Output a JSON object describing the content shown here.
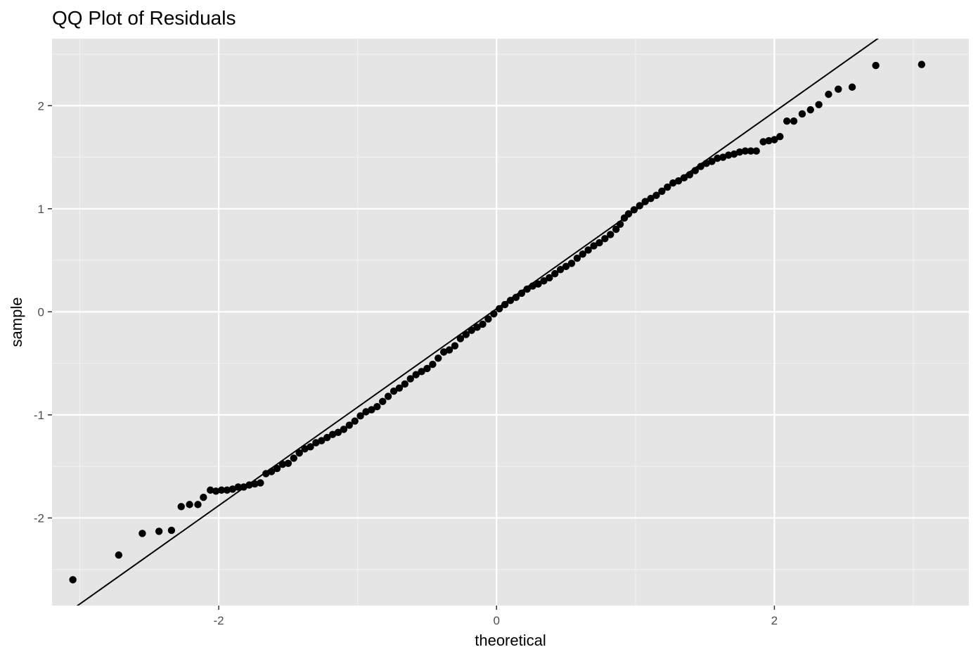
{
  "chart_data": {
    "type": "scatter",
    "title": "QQ Plot of Residuals",
    "xlabel": "theoretical",
    "ylabel": "sample",
    "xlim": [
      -3.2,
      3.4
    ],
    "ylim": [
      -2.85,
      2.65
    ],
    "x_ticks": [
      -2,
      0,
      2
    ],
    "x_tick_labels": [
      "-2",
      "0",
      "2"
    ],
    "y_ticks": [
      -2,
      -1,
      0,
      1,
      2
    ],
    "y_tick_labels": [
      "-2",
      "-1",
      "0",
      "1",
      "2"
    ],
    "grid": true,
    "reference_line": {
      "intercept": 0.03,
      "slope": 0.955
    },
    "series": [
      {
        "points": [
          [
            -3.05,
            -2.6
          ],
          [
            -2.72,
            -2.36
          ],
          [
            -2.55,
            -2.15
          ],
          [
            -2.43,
            -2.13
          ],
          [
            -2.34,
            -2.12
          ],
          [
            -2.27,
            -1.89
          ],
          [
            -2.21,
            -1.87
          ],
          [
            -2.15,
            -1.87
          ],
          [
            -2.11,
            -1.8
          ],
          [
            -2.06,
            -1.73
          ],
          [
            -2.02,
            -1.74
          ],
          [
            -1.98,
            -1.73
          ],
          [
            -1.94,
            -1.73
          ],
          [
            -1.9,
            -1.72
          ],
          [
            -1.86,
            -1.7
          ],
          [
            -1.82,
            -1.7
          ],
          [
            -1.78,
            -1.68
          ],
          [
            -1.74,
            -1.67
          ],
          [
            -1.7,
            -1.66
          ],
          [
            -1.66,
            -1.57
          ],
          [
            -1.62,
            -1.55
          ],
          [
            -1.58,
            -1.52
          ],
          [
            -1.54,
            -1.48
          ],
          [
            -1.5,
            -1.47
          ],
          [
            -1.46,
            -1.42
          ],
          [
            -1.42,
            -1.37
          ],
          [
            -1.38,
            -1.33
          ],
          [
            -1.34,
            -1.31
          ],
          [
            -1.3,
            -1.27
          ],
          [
            -1.26,
            -1.25
          ],
          [
            -1.22,
            -1.22
          ],
          [
            -1.18,
            -1.19
          ],
          [
            -1.14,
            -1.17
          ],
          [
            -1.1,
            -1.14
          ],
          [
            -1.06,
            -1.1
          ],
          [
            -1.02,
            -1.06
          ],
          [
            -0.98,
            -1.01
          ],
          [
            -0.94,
            -0.97
          ],
          [
            -0.9,
            -0.95
          ],
          [
            -0.86,
            -0.92
          ],
          [
            -0.82,
            -0.87
          ],
          [
            -0.78,
            -0.82
          ],
          [
            -0.74,
            -0.77
          ],
          [
            -0.7,
            -0.74
          ],
          [
            -0.66,
            -0.7
          ],
          [
            -0.62,
            -0.65
          ],
          [
            -0.58,
            -0.61
          ],
          [
            -0.54,
            -0.58
          ],
          [
            -0.5,
            -0.55
          ],
          [
            -0.46,
            -0.51
          ],
          [
            -0.42,
            -0.45
          ],
          [
            -0.38,
            -0.39
          ],
          [
            -0.34,
            -0.37
          ],
          [
            -0.3,
            -0.33
          ],
          [
            -0.26,
            -0.26
          ],
          [
            -0.22,
            -0.22
          ],
          [
            -0.18,
            -0.18
          ],
          [
            -0.14,
            -0.15
          ],
          [
            -0.1,
            -0.12
          ],
          [
            -0.06,
            -0.07
          ],
          [
            -0.02,
            -0.02
          ],
          [
            0.02,
            0.03
          ],
          [
            0.06,
            0.07
          ],
          [
            0.1,
            0.11
          ],
          [
            0.14,
            0.14
          ],
          [
            0.18,
            0.18
          ],
          [
            0.22,
            0.22
          ],
          [
            0.26,
            0.25
          ],
          [
            0.3,
            0.27
          ],
          [
            0.34,
            0.3
          ],
          [
            0.38,
            0.33
          ],
          [
            0.42,
            0.37
          ],
          [
            0.46,
            0.41
          ],
          [
            0.5,
            0.44
          ],
          [
            0.54,
            0.47
          ],
          [
            0.58,
            0.52
          ],
          [
            0.62,
            0.56
          ],
          [
            0.66,
            0.6
          ],
          [
            0.7,
            0.64
          ],
          [
            0.74,
            0.67
          ],
          [
            0.78,
            0.71
          ],
          [
            0.82,
            0.75
          ],
          [
            0.86,
            0.8
          ],
          [
            0.89,
            0.85
          ],
          [
            0.92,
            0.91
          ],
          [
            0.95,
            0.95
          ],
          [
            0.99,
            0.99
          ],
          [
            1.03,
            1.03
          ],
          [
            1.07,
            1.07
          ],
          [
            1.11,
            1.1
          ],
          [
            1.15,
            1.13
          ],
          [
            1.19,
            1.17
          ],
          [
            1.23,
            1.21
          ],
          [
            1.27,
            1.25
          ],
          [
            1.31,
            1.27
          ],
          [
            1.35,
            1.3
          ],
          [
            1.39,
            1.33
          ],
          [
            1.43,
            1.37
          ],
          [
            1.47,
            1.41
          ],
          [
            1.51,
            1.44
          ],
          [
            1.55,
            1.46
          ],
          [
            1.59,
            1.49
          ],
          [
            1.63,
            1.5
          ],
          [
            1.67,
            1.52
          ],
          [
            1.71,
            1.53
          ],
          [
            1.75,
            1.55
          ],
          [
            1.79,
            1.56
          ],
          [
            1.83,
            1.56
          ],
          [
            1.87,
            1.56
          ],
          [
            1.92,
            1.65
          ],
          [
            1.96,
            1.66
          ],
          [
            2.0,
            1.67
          ],
          [
            2.04,
            1.7
          ],
          [
            2.09,
            1.85
          ],
          [
            2.14,
            1.85
          ],
          [
            2.2,
            1.92
          ],
          [
            2.26,
            1.96
          ],
          [
            2.32,
            2.01
          ],
          [
            2.39,
            2.11
          ],
          [
            2.46,
            2.16
          ],
          [
            2.56,
            2.18
          ],
          [
            2.73,
            2.39
          ],
          [
            3.06,
            2.4
          ]
        ]
      }
    ]
  }
}
